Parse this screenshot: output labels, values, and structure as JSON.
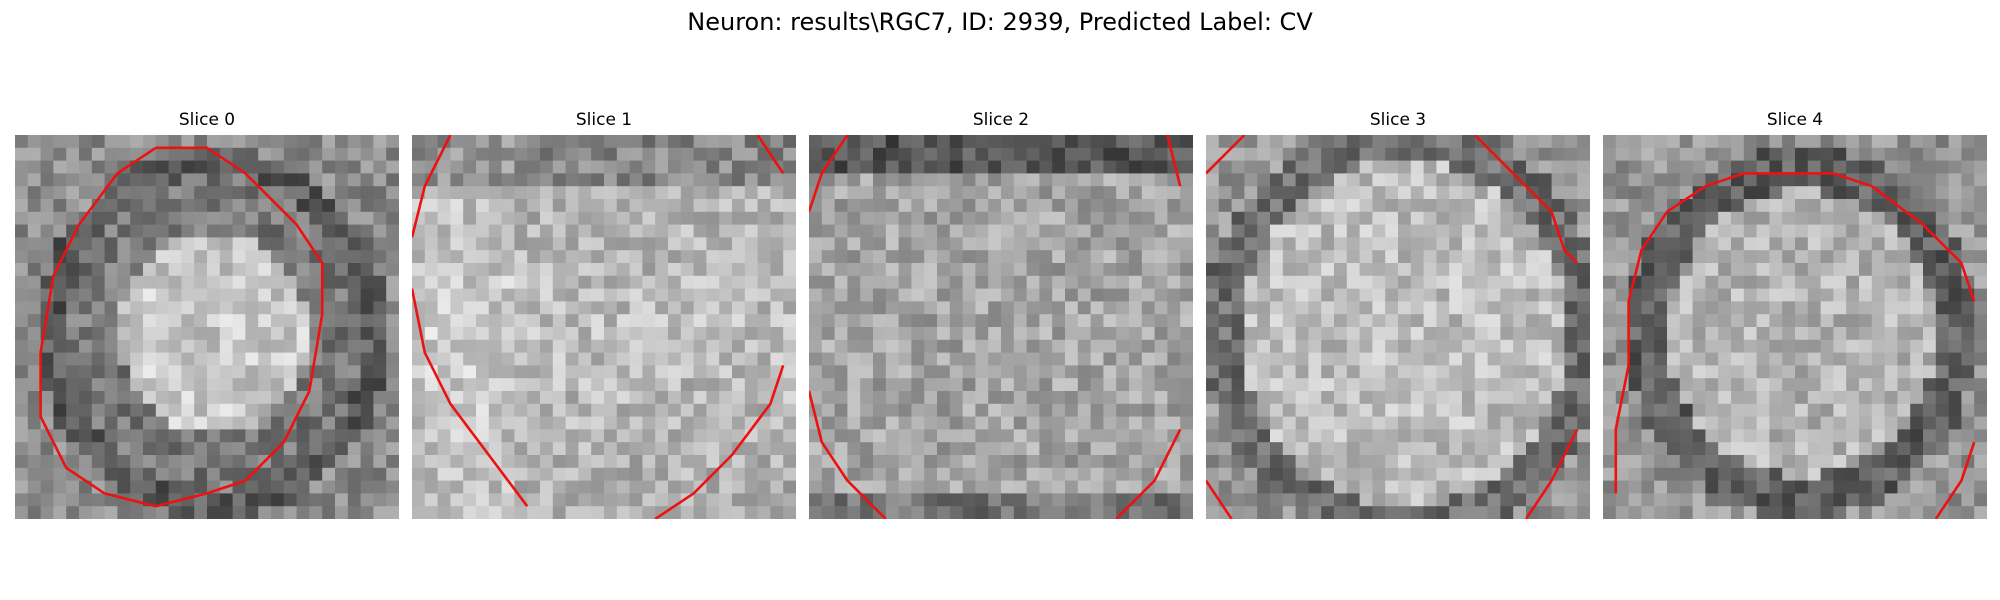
{
  "figure": {
    "title": "Neuron: results\\RGC7, ID: 2939, Predicted Label: CV"
  },
  "panels": [
    {
      "title": "Slice 0",
      "kind": "soma-center"
    },
    {
      "title": "Slice 1",
      "kind": "bright-left"
    },
    {
      "title": "Slice 2",
      "kind": "flat"
    },
    {
      "title": "Slice 3",
      "kind": "bright-ring"
    },
    {
      "title": "Slice 4",
      "kind": "dark-ring"
    }
  ],
  "colors": {
    "contour": "#ee1111",
    "background": "#ffffff"
  }
}
